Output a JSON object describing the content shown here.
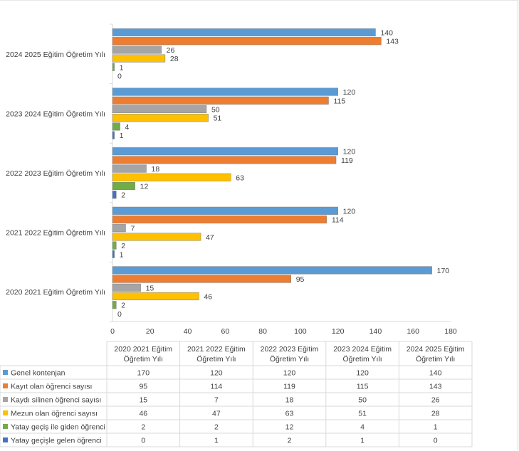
{
  "chart_data": {
    "type": "bar",
    "orientation": "horizontal",
    "categories": [
      "2020 2021 Eğitim Öğretim Yılı",
      "2021 2022 Eğitim Öğretim Yılı",
      "2022 2023 Eğitim Öğretim Yılı",
      "2023 2024 Eğitim Öğretim Yılı",
      "2024 2025 Eğitim Öğretim Yılı"
    ],
    "table_headers": [
      [
        "2020 2021 Eğitim",
        "Öğretim Yılı"
      ],
      [
        "2021 2022 Eğitim",
        "Öğretim Yılı"
      ],
      [
        "2022 2023 Eğitim",
        "Öğretim Yılı"
      ],
      [
        "2023 2024 Eğitim",
        "Öğretim Yılı"
      ],
      [
        "2024 2025 Eğitim",
        "Öğretim Yılı"
      ]
    ],
    "series": [
      {
        "name": "Genel kontenjan",
        "color": "#5b9bd5",
        "values": [
          170,
          120,
          120,
          120,
          140
        ]
      },
      {
        "name": "Kayıt olan öğrenci sayısı",
        "color": "#ed7d31",
        "values": [
          95,
          114,
          119,
          115,
          143
        ]
      },
      {
        "name": "Kaydı silinen öğrenci sayısı",
        "color": "#a5a5a5",
        "values": [
          15,
          7,
          18,
          50,
          26
        ]
      },
      {
        "name": "Mezun olan öğrenci sayısı",
        "color": "#ffc000",
        "values": [
          46,
          47,
          63,
          51,
          28
        ]
      },
      {
        "name": "Yatay geçiş ile giden öğrenci",
        "color": "#70ad47",
        "values": [
          2,
          2,
          12,
          4,
          1
        ]
      },
      {
        "name": "Yatay geçişle gelen öğrenci",
        "color": "#4472c4",
        "values": [
          0,
          1,
          2,
          1,
          0
        ]
      }
    ],
    "x_ticks": [
      0,
      20,
      40,
      60,
      80,
      100,
      120,
      140,
      160,
      180
    ],
    "xlim": [
      0,
      180
    ],
    "data_table": true,
    "legend": "data-table"
  }
}
